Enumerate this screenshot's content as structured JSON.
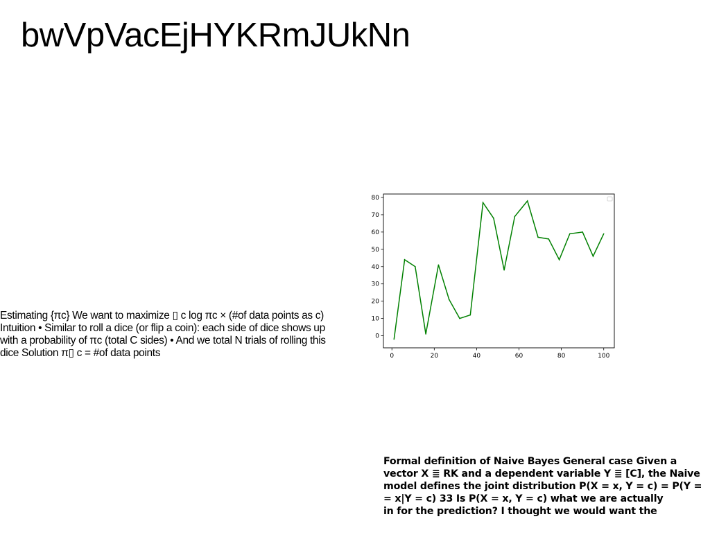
{
  "page": {
    "title": "bwVpVacEjHYKRmJUkNn"
  },
  "left_paragraph": {
    "text": "Estimating {πc} We want to maximize ▯ c log πc × (#of data points as c) Intuition • Similar to roll a dice (or flip a coin): each side of dice shows up with a probability of πc (total C sides) • And we total N trials of rolling this dice Solution π▯ c = #of data points"
  },
  "right_paragraph": {
    "text": "Formal definition of Naive Bayes General case Given a\nvector X ≣ RK and a dependent variable Y ≣ [C], the Naive\nmodel defines the joint distribution P(X = x, Y = c) = P(Y =\n= x|Y = c) 33 Is P(X = x, Y = c) what we are actually\nin for the prediction? I thought we would want the"
  },
  "chart_data": {
    "type": "line",
    "x": [
      1,
      6,
      11,
      16,
      22,
      27,
      32,
      37,
      43,
      48,
      53,
      58,
      64,
      69,
      74,
      79,
      84,
      90,
      95,
      100
    ],
    "series": [
      {
        "values": [
          -2,
          44,
          40,
          1,
          41,
          21,
          10,
          12,
          77,
          68,
          38,
          69,
          78,
          57,
          56,
          44,
          59,
          60,
          46,
          59
        ],
        "color": "#008000"
      }
    ],
    "xlim": [
      -4,
      105
    ],
    "ylim": [
      -7,
      82
    ],
    "xticks": [
      0,
      20,
      40,
      60,
      80,
      100
    ],
    "yticks": [
      0,
      10,
      20,
      30,
      40,
      50,
      60,
      70,
      80
    ],
    "title": "",
    "xlabel": "",
    "ylabel": "",
    "grid": false,
    "legend": "top-right, empty"
  }
}
